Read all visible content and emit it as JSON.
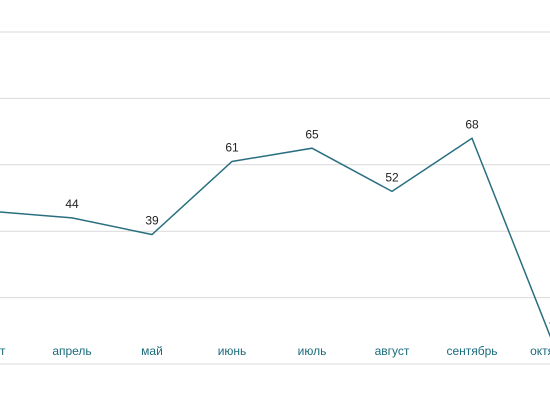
{
  "chart_data": {
    "type": "line",
    "categories": [
      "март",
      "апрель",
      "май",
      "июнь",
      "июль",
      "август",
      "сентябрь",
      "октябрь"
    ],
    "values": [
      46,
      44,
      39,
      61,
      65,
      52,
      68,
      7
    ],
    "color": "#2a6f80",
    "ylim": [
      0,
      100
    ],
    "yticks": [
      0,
      20,
      40,
      60,
      80,
      100
    ],
    "grid": true
  }
}
